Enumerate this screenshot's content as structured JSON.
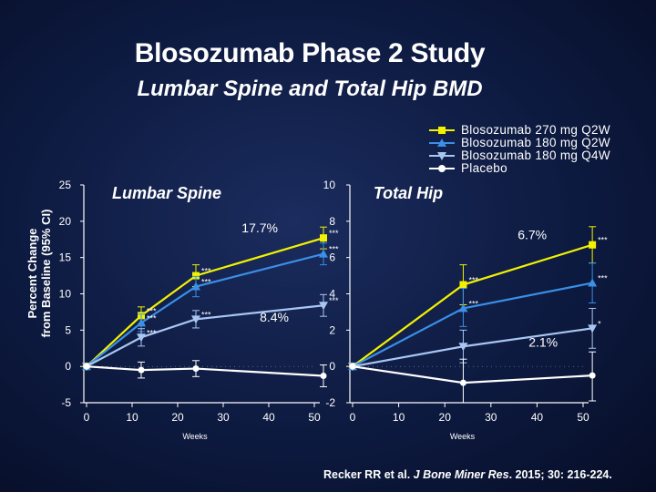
{
  "slide": {
    "title": "Blosozumab Phase 2 Study",
    "subtitle": "Lumbar Spine and Total Hip BMD",
    "citation_pre": "Recker RR et al. ",
    "citation_journal": "J Bone Miner Res",
    "citation_post": ". 2015; 30: 216-224."
  },
  "legend": [
    {
      "label": "Blosozumab 270 mg Q2W",
      "color": "#f2f200",
      "marker": "square"
    },
    {
      "label": "Blosozumab 180 mg Q2W",
      "color": "#3a8fe6",
      "marker": "triangle"
    },
    {
      "label": "Blosozumab 180 mg Q4W",
      "color": "#a9c6f2",
      "marker": "down-triangle"
    },
    {
      "label": "Placebo",
      "color": "#ffffff",
      "marker": "circle"
    }
  ],
  "colors": {
    "q2w270": "#f2f200",
    "q2w180": "#3a8fe6",
    "q4w180": "#a9c6f2",
    "placebo": "#ffffff",
    "axis": "#ffffff"
  },
  "chart_data": [
    {
      "type": "line",
      "title": "Lumbar Spine",
      "ylabel": "Percent Change from Baseline (95% CI)",
      "xlabel": "Weeks",
      "xlim": [
        0,
        50
      ],
      "xticks": [
        0,
        10,
        20,
        30,
        40,
        50
      ],
      "ylim": [
        -5,
        25
      ],
      "yticks": [
        -5,
        0,
        5,
        10,
        15,
        20,
        25
      ],
      "series": [
        {
          "name": "Blosozumab 270 mg Q2W",
          "x": [
            0,
            12,
            24,
            52
          ],
          "y": [
            0,
            7.0,
            12.5,
            17.7
          ],
          "ci": [
            [
              0,
              0
            ],
            [
              5.8,
              8.2
            ],
            [
              11.0,
              14.0
            ],
            [
              16.2,
              19.2
            ]
          ],
          "sig": [
            "",
            "***",
            "***",
            "***"
          ]
        },
        {
          "name": "Blosozumab 180 mg Q2W",
          "x": [
            0,
            12,
            24,
            52
          ],
          "y": [
            0,
            6.0,
            11.0,
            15.5
          ],
          "ci": [
            [
              0,
              0
            ],
            [
              4.8,
              7.2
            ],
            [
              9.6,
              12.4
            ],
            [
              14.0,
              17.0
            ]
          ],
          "sig": [
            "",
            "***",
            "***",
            "***"
          ]
        },
        {
          "name": "Blosozumab 180 mg Q4W",
          "x": [
            0,
            12,
            24,
            52
          ],
          "y": [
            0,
            4.0,
            6.5,
            8.4
          ],
          "ci": [
            [
              0,
              0
            ],
            [
              2.8,
              5.2
            ],
            [
              5.3,
              7.7
            ],
            [
              6.9,
              9.9
            ]
          ],
          "sig": [
            "",
            "***",
            "***",
            "***"
          ]
        },
        {
          "name": "Placebo",
          "x": [
            0,
            12,
            24,
            52
          ],
          "y": [
            0,
            -0.5,
            -0.3,
            -1.3
          ],
          "ci": [
            [
              0,
              0
            ],
            [
              -1.6,
              0.6
            ],
            [
              -1.4,
              0.8
            ],
            [
              -2.8,
              0.2
            ]
          ],
          "sig": [
            "",
            "",
            "",
            ""
          ]
        }
      ],
      "annotations": [
        {
          "text": "17.7%",
          "x": 52,
          "y": 17.7
        },
        {
          "text": "8.4%",
          "x": 52,
          "y": 8.4
        }
      ]
    },
    {
      "type": "line",
      "title": "Total Hip",
      "xlabel": "Weeks",
      "xlim": [
        0,
        50
      ],
      "xticks": [
        0,
        10,
        20,
        30,
        40,
        50
      ],
      "ylim": [
        -2,
        10
      ],
      "yticks": [
        -2,
        0,
        2,
        4,
        6,
        8,
        10
      ],
      "series": [
        {
          "name": "Blosozumab 270 mg Q2W",
          "x": [
            0,
            24,
            52
          ],
          "y": [
            0,
            4.5,
            6.7
          ],
          "ci": [
            [
              0,
              0
            ],
            [
              3.4,
              5.6
            ],
            [
              5.7,
              7.7
            ]
          ],
          "sig": [
            "",
            "***",
            "***"
          ]
        },
        {
          "name": "Blosozumab 180 mg Q2W",
          "x": [
            0,
            24,
            52
          ],
          "y": [
            0,
            3.2,
            4.6
          ],
          "ci": [
            [
              0,
              0
            ],
            [
              2.2,
              4.3
            ],
            [
              3.5,
              5.7
            ]
          ],
          "sig": [
            "",
            "***",
            "***"
          ]
        },
        {
          "name": "Blosozumab 180 mg Q4W",
          "x": [
            0,
            24,
            52
          ],
          "y": [
            0,
            1.1,
            2.1
          ],
          "ci": [
            [
              0,
              0
            ],
            [
              0.2,
              2.0
            ],
            [
              1.0,
              3.2
            ]
          ],
          "sig": [
            "",
            "",
            "*"
          ]
        },
        {
          "name": "Placebo",
          "x": [
            0,
            24,
            52
          ],
          "y": [
            0,
            -0.9,
            -0.5
          ],
          "ci": [
            [
              0,
              0
            ],
            [
              -2.0,
              0.4
            ],
            [
              -1.9,
              0.8
            ]
          ],
          "sig": [
            "",
            "",
            ""
          ]
        }
      ],
      "annotations": [
        {
          "text": "6.7%",
          "x": 52,
          "y": 6.7
        },
        {
          "text": "2.1%",
          "x": 52,
          "y": 2.1
        }
      ]
    }
  ]
}
